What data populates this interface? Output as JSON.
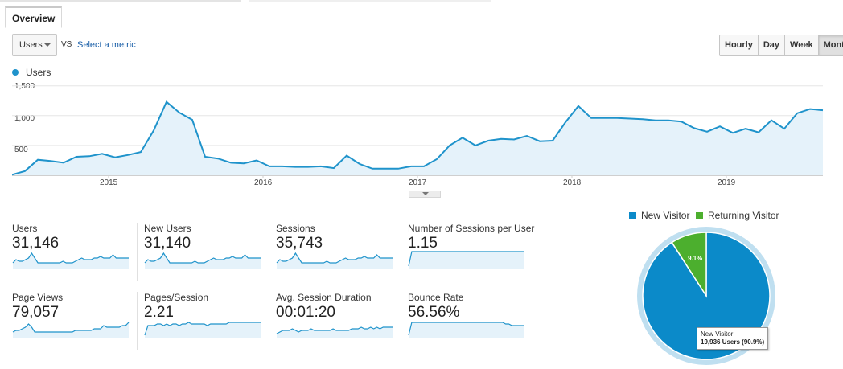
{
  "tabs": [
    {
      "label": "Overview"
    }
  ],
  "controls": {
    "primary_metric": "Users",
    "vs_label": "VS",
    "select_metric_link": "Select a metric",
    "period_buttons": [
      "Hourly",
      "Day",
      "Week",
      "Month"
    ],
    "active_period": "Month"
  },
  "colors": {
    "series_line": "#1f93cb",
    "series_fill": "#e5f2fa",
    "new_visitor": "#0b8ac9",
    "returning_visitor": "#4caf2e",
    "pie_ring": "#bfdff0"
  },
  "chart_data": [
    {
      "type": "area",
      "legend": [
        "Users"
      ],
      "y_ticks": [
        "1,500",
        "1,000",
        "500"
      ],
      "ylim": [
        0,
        1550
      ],
      "x_ticks": [
        "2015",
        "2016",
        "2017",
        "2018",
        "2019"
      ],
      "x_tick_positions": [
        7.5,
        19.5,
        31.5,
        43.5,
        55.5
      ],
      "grid": true,
      "series": [
        {
          "name": "Users",
          "values": [
            10,
            70,
            260,
            240,
            210,
            310,
            320,
            360,
            300,
            340,
            390,
            750,
            1230,
            1050,
            930,
            310,
            280,
            210,
            200,
            250,
            150,
            150,
            140,
            140,
            150,
            120,
            330,
            190,
            110,
            110,
            110,
            150,
            150,
            270,
            500,
            630,
            500,
            580,
            610,
            600,
            660,
            570,
            580,
            890,
            1160,
            960,
            960,
            960,
            950,
            940,
            920,
            920,
            900,
            790,
            730,
            820,
            710,
            780,
            720,
            920,
            780,
            1040,
            1110,
            1090
          ]
        }
      ]
    },
    {
      "type": "pie",
      "legend": [
        "New Visitor",
        "Returning Visitor"
      ],
      "slices": [
        {
          "name": "New Visitor",
          "value": 90.9
        },
        {
          "name": "Returning Visitor",
          "value": 9.1
        }
      ],
      "data_labels": [
        "9.1%"
      ]
    }
  ],
  "metrics": [
    {
      "label": "Users",
      "value": "31,146",
      "spark": [
        3,
        5,
        4,
        4,
        5,
        6,
        9,
        6,
        3,
        3,
        3,
        3,
        3,
        3,
        3,
        3,
        4,
        3,
        3,
        3,
        4,
        5,
        6,
        5,
        5,
        5,
        6,
        6,
        7,
        6,
        6,
        6,
        8,
        6,
        6,
        6,
        6,
        6
      ]
    },
    {
      "label": "New Users",
      "value": "31,140",
      "spark": [
        3,
        5,
        4,
        4,
        5,
        6,
        9,
        6,
        3,
        3,
        3,
        3,
        3,
        3,
        3,
        3,
        4,
        3,
        3,
        3,
        4,
        5,
        6,
        5,
        5,
        5,
        6,
        6,
        7,
        6,
        6,
        6,
        8,
        6,
        6,
        6,
        6,
        6
      ]
    },
    {
      "label": "Sessions",
      "value": "35,743",
      "spark": [
        3,
        5,
        4,
        4,
        5,
        6,
        9,
        6,
        3,
        3,
        3,
        3,
        3,
        3,
        3,
        3,
        4,
        3,
        3,
        3,
        4,
        5,
        6,
        5,
        5,
        5,
        6,
        6,
        7,
        6,
        6,
        6,
        8,
        6,
        6,
        6,
        6,
        6
      ]
    },
    {
      "label": "Number of Sessions per User",
      "value": "1.15",
      "spark": [
        1,
        10,
        10,
        10,
        10,
        10,
        10,
        10,
        10,
        10,
        10,
        10,
        10,
        10,
        10,
        10,
        10,
        10,
        10,
        10,
        10,
        10,
        10,
        10,
        10,
        10,
        10,
        10,
        10,
        10,
        10,
        10,
        10,
        10,
        10,
        10,
        10,
        10
      ]
    },
    {
      "label": "Page Views",
      "value": "79,057",
      "spark": [
        3,
        4,
        4,
        5,
        6,
        8,
        6,
        3,
        3,
        3,
        3,
        3,
        3,
        3,
        3,
        3,
        3,
        3,
        3,
        3,
        4,
        4,
        4,
        4,
        4,
        4,
        5,
        5,
        5,
        7,
        6,
        6,
        6,
        6,
        6,
        7,
        7,
        9
      ]
    },
    {
      "label": "Pages/Session",
      "value": "2.21",
      "spark": [
        1,
        7,
        7,
        7,
        8,
        8,
        7,
        8,
        7,
        8,
        8,
        7,
        8,
        8,
        9,
        8,
        8,
        8,
        8,
        8,
        7,
        8,
        8,
        8,
        8,
        8,
        8,
        9,
        9,
        9,
        9,
        9,
        9,
        9,
        9,
        9,
        9,
        9
      ]
    },
    {
      "label": "Avg. Session Duration",
      "value": "00:01:20",
      "spark": [
        2,
        3,
        4,
        4,
        4,
        5,
        4,
        3,
        4,
        4,
        4,
        5,
        4,
        4,
        4,
        4,
        4,
        4,
        5,
        4,
        4,
        4,
        4,
        4,
        5,
        5,
        5,
        6,
        5,
        5,
        6,
        5,
        6,
        5,
        6,
        6,
        6,
        6
      ]
    },
    {
      "label": "Bounce Rate",
      "value": "56.56%",
      "spark": [
        1,
        9,
        9,
        9,
        9,
        9,
        9,
        9,
        9,
        9,
        9,
        9,
        9,
        9,
        9,
        9,
        9,
        9,
        9,
        9,
        9,
        9,
        9,
        9,
        9,
        9,
        9,
        9,
        9,
        9,
        9,
        8,
        8,
        7,
        7,
        7,
        7,
        7
      ]
    }
  ],
  "pie_tooltip": {
    "title": "New Visitor",
    "value": "19,936 Users (90.9%)"
  }
}
